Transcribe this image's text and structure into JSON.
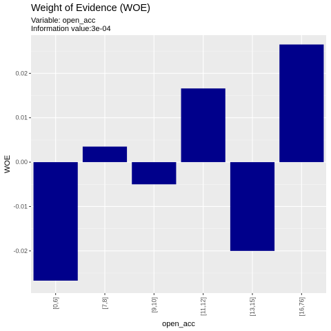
{
  "chart_data": {
    "type": "bar",
    "title": "Weight of Evidence (WOE)",
    "subtitle_lines": [
      "Variable: open_acc",
      "Information value:3e-04"
    ],
    "xlabel": "open_acc",
    "ylabel": "WOE",
    "categories": [
      "[0,6]",
      "[7,8]",
      "[9,10]",
      "[11,12]",
      "[13,15]",
      "[16,76]"
    ],
    "values": [
      -0.0267,
      0.0035,
      -0.005,
      0.0166,
      -0.02,
      0.0265
    ],
    "ylim": [
      -0.0295,
      0.0286
    ],
    "yticks": [
      -0.02,
      -0.01,
      0.0,
      0.01,
      0.02
    ],
    "ytick_labels": [
      "-0.02",
      "-0.01",
      "0.00",
      "0.01",
      "0.02"
    ],
    "grid": true,
    "colors": {
      "bar": "#00008B",
      "panel": "#EBEBEB",
      "grid_major": "#FFFFFF",
      "grid_minor": "#F5F5F5"
    }
  }
}
